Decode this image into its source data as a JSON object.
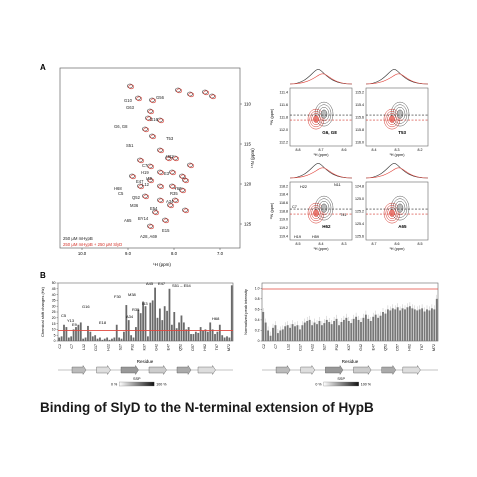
{
  "panel_a": {
    "label": "A",
    "main": {
      "xlabel": "¹H (ppm)",
      "ylabel": "¹⁵N (ppm)",
      "x_ticks": [
        "10.0",
        "9.0",
        "8.0",
        "7.0"
      ],
      "y_ticks": [
        "110",
        "115",
        "120",
        "125"
      ],
      "legend": [
        "250 μM mHypB",
        "250 μM mHypB + 250 μM SlyD"
      ],
      "peak_labels": [
        "G10",
        "G56",
        "G63",
        "G16",
        "G6, G8",
        "T53",
        "S51",
        "H22",
        "C7",
        "H19",
        "E3",
        "I43",
        "E47",
        "L12",
        "H68",
        "C5",
        "Y60",
        "R35",
        "Q52",
        "A34",
        "M36",
        "E54",
        "BY14",
        "A65",
        "E15",
        "A28, A69",
        "A45"
      ]
    },
    "insets": [
      {
        "label": "G6, G8",
        "x_ticks": [
          "8.8",
          "8.7",
          "8.6"
        ],
        "y_ticks": [
          "111.4",
          "111.6",
          "111.8",
          "112.0",
          "112.2"
        ]
      },
      {
        "label": "T53",
        "x_ticks": [
          "8.4",
          "8.3",
          "8.2"
        ],
        "y_ticks": [
          "115.2",
          "115.4",
          "115.6",
          "115.8",
          "116.0"
        ]
      },
      {
        "label": "H62",
        "extra": [
          "H22",
          "N11",
          "C7",
          "T41",
          "H19",
          "H59"
        ],
        "x_ticks": [
          "8.5",
          "8.4",
          "8.3"
        ],
        "y_ticks": [
          "118.2",
          "118.4",
          "118.6",
          "118.8",
          "119.0",
          "119.2",
          "119.4"
        ]
      },
      {
        "label": "A65",
        "x_ticks": [
          "8.7",
          "8.6",
          "8.5"
        ],
        "y_ticks": [
          "124.8",
          "125.0",
          "125.2",
          "125.4",
          "125.6"
        ]
      }
    ],
    "inset_xlabel": "¹H (ppm)",
    "inset_ylabel": "¹⁵N (ppm)"
  },
  "panel_b": {
    "label": "B",
    "left": {
      "ylabel": "Chemical shift changes (Hz)",
      "xlabel": "Residue",
      "y_ticks": [
        "0",
        "5",
        "10",
        "15",
        "20",
        "25",
        "30",
        "35",
        "40",
        "45",
        "50"
      ],
      "residues": [
        "C2",
        "C7",
        "L12",
        "D17",
        "H22",
        "S27",
        "P32",
        "K37",
        "G42",
        "E47",
        "Q52",
        "D57",
        "H62",
        "T67",
        "M72"
      ],
      "annotations": [
        "C5",
        "Y13",
        "E9",
        "G16",
        "E18",
        "F30",
        "M38",
        "R35",
        "A34",
        "I43",
        "A45",
        "E47",
        "S51 – E54",
        "H68"
      ],
      "threshold": 9
    },
    "right": {
      "ylabel": "Normalized peak intensity",
      "xlabel": "Residue",
      "y_ticks": [
        "0",
        "0.2",
        "0.4",
        "0.6",
        "0.8",
        "1.0"
      ],
      "residues": [
        "C2",
        "C7",
        "L12",
        "D17",
        "H22",
        "S27",
        "P32",
        "K37",
        "G42",
        "E47",
        "Q52",
        "D57",
        "H62",
        "T67",
        "M72"
      ]
    },
    "ssp": {
      "label": "SSP",
      "min": "0 %",
      "max": "100 %"
    }
  },
  "caption": "Binding of SlyD to the N-terminal extension of HypB"
}
